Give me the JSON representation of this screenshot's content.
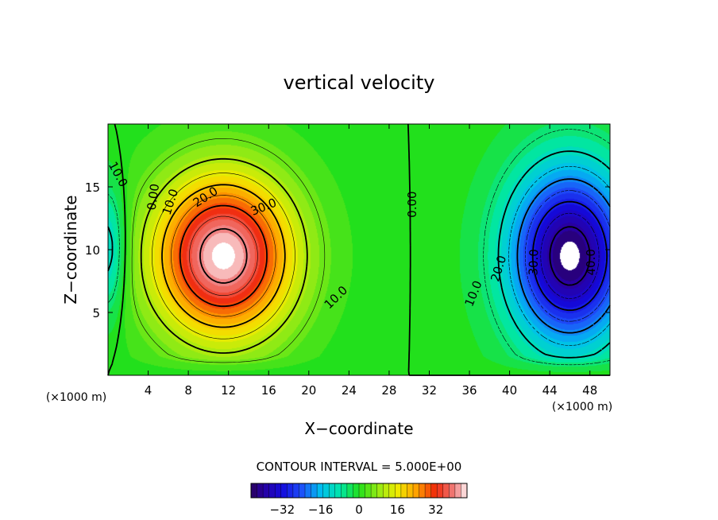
{
  "chart_data": {
    "type": "heatmap",
    "subtype": "filled-contour",
    "title": "vertical velocity",
    "xlabel": "X−coordinate",
    "ylabel": "Z−coordinate",
    "x_units": "(×1000 m)",
    "z_units": "(×1000 m)",
    "xlim": [
      0,
      50
    ],
    "ylim": [
      0,
      20
    ],
    "x_ticks": [
      4,
      8,
      12,
      16,
      20,
      24,
      28,
      32,
      36,
      40,
      44,
      48
    ],
    "y_ticks": [
      5,
      10,
      15
    ],
    "contour_interval_label": "CONTOUR INTERVAL = 5.000E+00",
    "colorbar": {
      "range": [
        -45,
        45
      ],
      "ticks": [
        -32,
        -16,
        0,
        16,
        32
      ],
      "tick_labels": [
        "−32",
        "−16",
        "0",
        "16",
        "32"
      ]
    },
    "contour_labels": [
      {
        "text": "10.0",
        "x": 1.0,
        "z": 16.0,
        "rotate": 62
      },
      {
        "text": "0.00",
        "x": 4.5,
        "z": 14.2,
        "rotate": -82
      },
      {
        "text": "10.0",
        "x": 6.2,
        "z": 13.8,
        "rotate": -72
      },
      {
        "text": "20.0",
        "x": 9.7,
        "z": 14.2,
        "rotate": -33
      },
      {
        "text": "30.0",
        "x": 15.5,
        "z": 13.4,
        "rotate": -22
      },
      {
        "text": "10.0",
        "x": 22.7,
        "z": 6.2,
        "rotate": -44
      },
      {
        "text": "0.00",
        "x": 30.3,
        "z": 13.6,
        "rotate": -90
      },
      {
        "text": "20.0",
        "x": 38.9,
        "z": 8.5,
        "rotate": -73
      },
      {
        "text": "10.0",
        "x": 36.4,
        "z": 6.5,
        "rotate": -68
      },
      {
        "text": "30.0",
        "x": 42.4,
        "z": 9.0,
        "rotate": -88
      },
      {
        "text": "40.0",
        "x": 48.1,
        "z": 9.0,
        "rotate": -90
      }
    ],
    "features": [
      {
        "sign": "positive",
        "center_x": 11.5,
        "center_z": 9.5,
        "peak": 45
      },
      {
        "sign": "negative",
        "center_x": 46.0,
        "center_z": 9.5,
        "peak": -45
      }
    ]
  },
  "colors": {
    "negative_extreme": "#3a006a",
    "zero": "#22e01c",
    "positive_extreme": "#fff2f2",
    "out_of_range": "#ffffff"
  }
}
